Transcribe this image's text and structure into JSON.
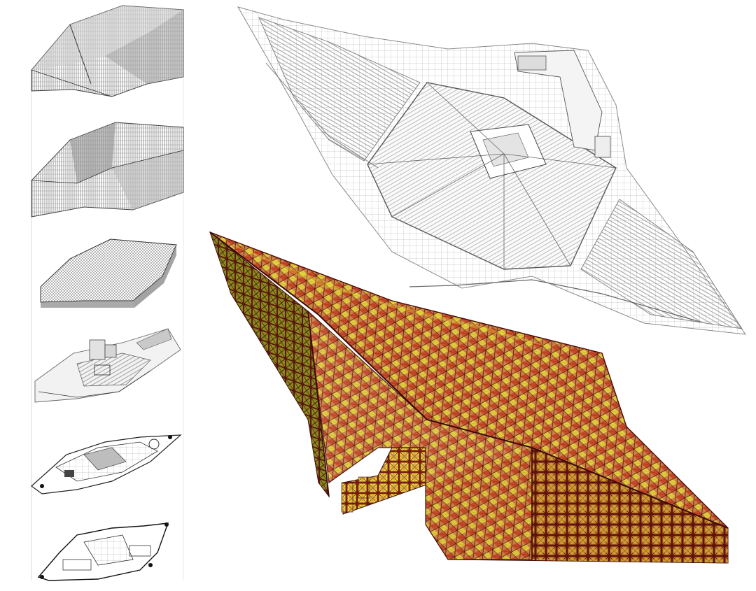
{
  "figure": {
    "colors": {
      "background": "#ffffff",
      "wire_grey": "#7a7a7a",
      "wire_dark": "#2b2b2b",
      "wire_light": "#b9b9b9",
      "panel_yellow": "#e8e43a",
      "panel_orange": "#c98246",
      "panel_red": "#c8331e",
      "panel_maroon": "#6e1410",
      "panel_dark": "#3b0a0a"
    },
    "left_column": [
      {
        "name": "roof-skin-mesh",
        "icon": "wireframe-roof-icon"
      },
      {
        "name": "facade-wall-mesh",
        "icon": "wireframe-wall-icon"
      },
      {
        "name": "roof-structure-grid",
        "icon": "grid-slab-icon"
      },
      {
        "name": "interior-seating-model",
        "icon": "seating-model-icon"
      },
      {
        "name": "upper-floor-plan",
        "icon": "floor-plan-icon"
      },
      {
        "name": "ground-floor-plan",
        "icon": "floor-plan-icon"
      }
    ],
    "top_right": {
      "name": "arena-wireframe-plan",
      "icon": "arena-seating-icon"
    },
    "bottom_right": {
      "name": "panelized-roof-render",
      "icon": "panel-facade-icon"
    }
  }
}
